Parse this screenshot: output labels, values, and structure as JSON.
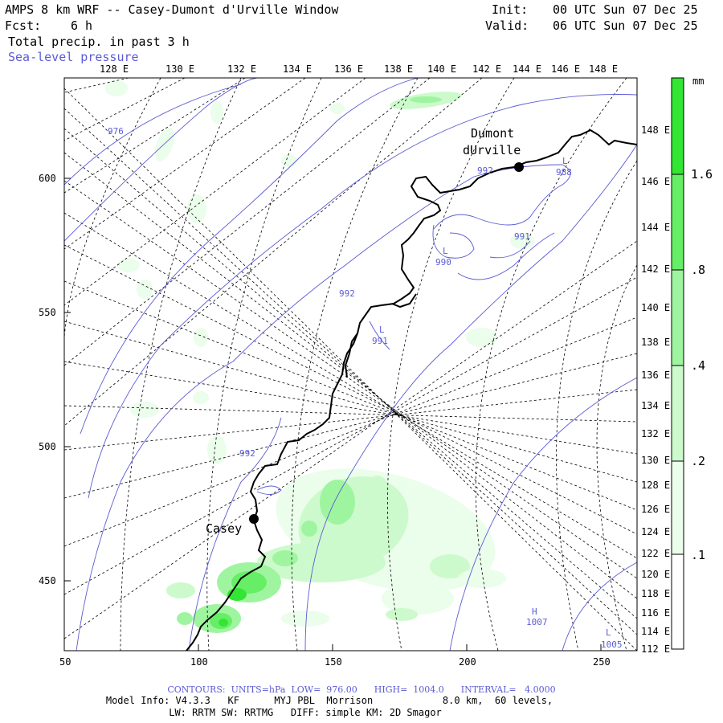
{
  "header": {
    "title": "AMPS 8 km WRF -- Casey-Dumont d'Urville Window",
    "fcst_label": "Fcst:",
    "fcst_value": "6 h",
    "field1": "Total precip. in past 3 h",
    "field2": "Sea-level pressure",
    "init_label": "Init:",
    "init_value": "00 UTC Sun 07 Dec 25",
    "valid_label": "Valid:",
    "valid_value": "06 UTC Sun 07 Dec 25"
  },
  "axes": {
    "top_lon": [
      "128 E",
      "130 E",
      "132 E",
      "134 E",
      "136 E",
      "138 E",
      "140 E",
      "142 E",
      "144 E",
      "146 E",
      "148 E"
    ],
    "right_lon": [
      "148 E",
      "146 E",
      "144 E",
      "142 E",
      "140 E",
      "138 E",
      "136 E",
      "134 E",
      "132 E",
      "130 E",
      "128 E",
      "126 E",
      "124 E",
      "122 E",
      "120 E",
      "118 E",
      "116 E",
      "114 E",
      "112 E"
    ],
    "left_ticks": [
      "600",
      "550",
      "500",
      "450"
    ],
    "bottom_ticks": [
      "50",
      "100",
      "150",
      "200",
      "250"
    ]
  },
  "places": {
    "dumont_line1": "Dumont",
    "dumont_line2": "dUrville",
    "casey": "Casey"
  },
  "pressure_labels": [
    {
      "id": "p976",
      "text": "976"
    },
    {
      "id": "p992a",
      "text": "992"
    },
    {
      "id": "p988",
      "text": "988"
    },
    {
      "id": "p991a",
      "text": "991"
    },
    {
      "id": "p990",
      "text": "990"
    },
    {
      "id": "p992b",
      "text": "992"
    },
    {
      "id": "p991b",
      "text": "991"
    },
    {
      "id": "p992c",
      "text": "992"
    },
    {
      "id": "p1007",
      "text": "1007"
    },
    {
      "id": "p1005",
      "text": "1005"
    }
  ],
  "low_markers": [
    "L",
    "L",
    "L",
    "L"
  ],
  "high_marker": "H",
  "colorbar": {
    "unit": "mm",
    "labels": [
      "1.6",
      ".8",
      ".4",
      ".2",
      ".1"
    ],
    "colors": [
      "#33e633",
      "#66ee66",
      "#9ff59f",
      "#ccfacc",
      "#ebfdeb",
      "#ffffff"
    ]
  },
  "footer": {
    "contours": "CONTOURS:  UNITS=hPa  LOW=  976.00      HIGH=  1004.0      INTERVAL=   4.0000",
    "model_line": "Model Info: V4.3.3   KF      MYJ PBL  Morrison            8.0 km,  60 levels,",
    "physics_line": "LW: RRTM SW: RRTMG   DIFF: simple KM: 2D Smagor"
  }
}
